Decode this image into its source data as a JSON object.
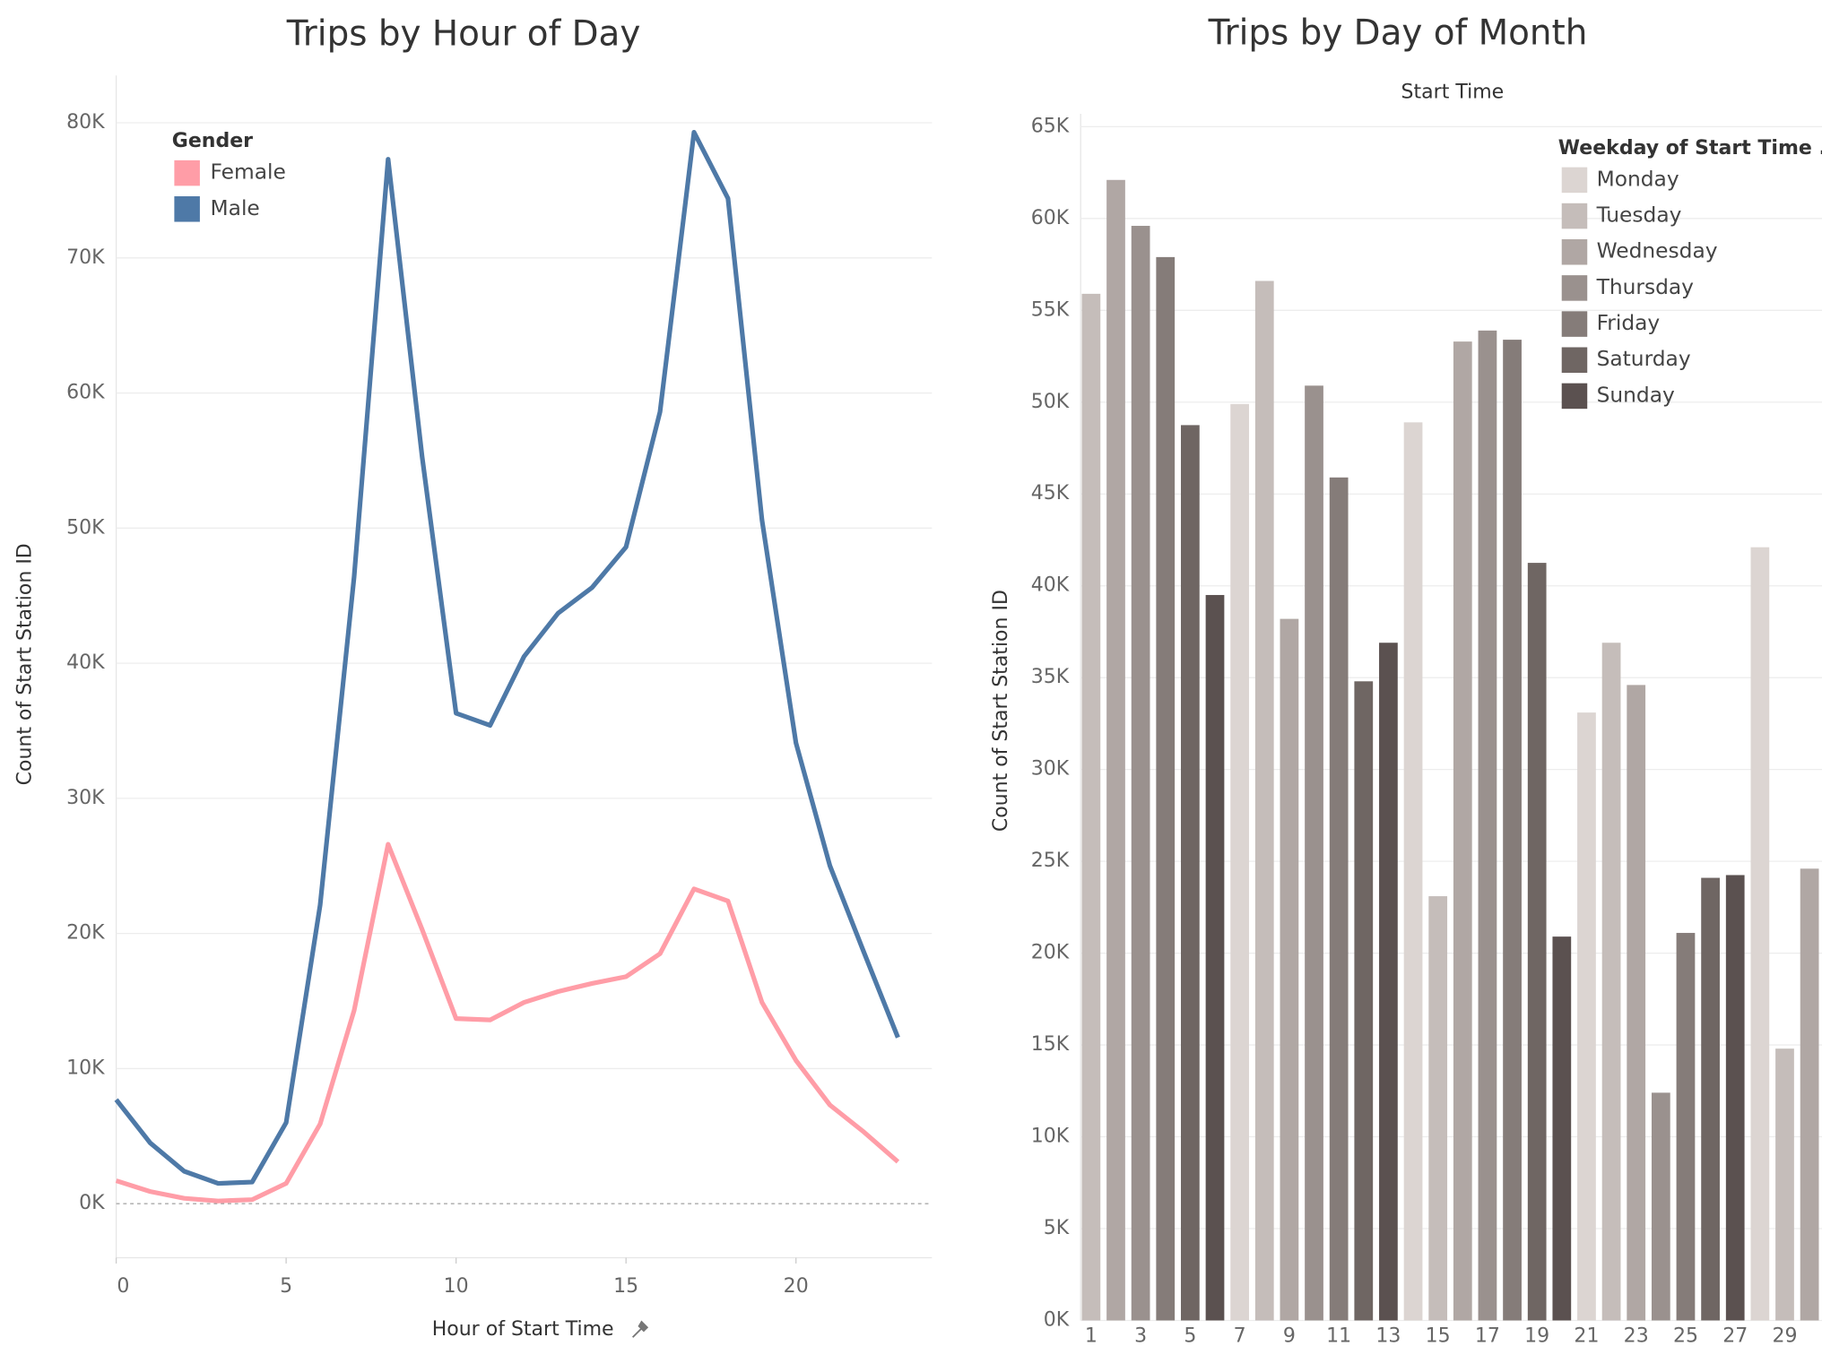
{
  "chart_data": [
    {
      "type": "line",
      "title": "Trips by Hour of Day",
      "x_label": "Hour of Start Time",
      "y_label": "Count of Start Station ID",
      "x": [
        0,
        1,
        2,
        3,
        4,
        5,
        6,
        7,
        8,
        9,
        10,
        11,
        12,
        13,
        14,
        15,
        16,
        17,
        18,
        19,
        20,
        21,
        22,
        23
      ],
      "series": [
        {
          "name": "Female",
          "color": "#ff9da7",
          "values": [
            1700,
            900,
            400,
            200,
            300,
            1500,
            5900,
            14300,
            26600,
            20300,
            13700,
            13600,
            14900,
            15700,
            16300,
            16800,
            18500,
            23300,
            22400,
            14900,
            10600,
            7300,
            5300,
            3100
          ]
        },
        {
          "name": "Male",
          "color": "#4e79a7",
          "values": [
            7700,
            4500,
            2400,
            1500,
            1600,
            6000,
            22100,
            46400,
            77300,
            55300,
            36300,
            35400,
            40500,
            43700,
            45600,
            48600,
            58600,
            79300,
            74400,
            50600,
            34100,
            25000,
            18600,
            12300
          ]
        }
      ],
      "legend_title": "Gender",
      "xlim": [
        0,
        24
      ],
      "xticks": [
        0,
        5,
        10,
        15,
        20
      ],
      "ylim": [
        -4000,
        83500
      ],
      "yticks": [
        {
          "value": 0,
          "label": "0K"
        },
        {
          "value": 10000,
          "label": "10K"
        },
        {
          "value": 20000,
          "label": "20K"
        },
        {
          "value": 30000,
          "label": "30K"
        },
        {
          "value": 40000,
          "label": "40K"
        },
        {
          "value": 50000,
          "label": "50K"
        },
        {
          "value": 60000,
          "label": "60K"
        },
        {
          "value": 70000,
          "label": "70K"
        },
        {
          "value": 80000,
          "label": "80K"
        }
      ],
      "grid": true
    },
    {
      "type": "bar",
      "title": "Trips by Day of Month",
      "subtitle": "Start Time",
      "y_label": "Count of Start Station ID",
      "categories": [
        1,
        null,
        3,
        null,
        5,
        null,
        7,
        null,
        9,
        null,
        11,
        null,
        13,
        null,
        15,
        null,
        17,
        null,
        19,
        null,
        21,
        null,
        23,
        null,
        25,
        null,
        27,
        null,
        29,
        null
      ],
      "values": [
        55900,
        62100,
        59600,
        57900,
        48750,
        39500,
        49900,
        56600,
        38200,
        50900,
        45900,
        34800,
        36900,
        48900,
        23100,
        53300,
        53900,
        53400,
        41250,
        20900,
        33100,
        36900,
        34600,
        12400,
        21100,
        24100,
        24250,
        42100,
        14800,
        24600
      ],
      "colors": [
        "#c5bdba",
        "#b0a7a4",
        "#9a918e",
        "#857c79",
        "#6f6663",
        "#5b5150",
        "#dcd5d2",
        "#c5bdba",
        "#b0a7a4",
        "#9a918e",
        "#857c79",
        "#6f6663",
        "#5b5150",
        "#dcd5d2",
        "#c5bdba",
        "#b0a7a4",
        "#9a918e",
        "#857c79",
        "#6f6663",
        "#5b5150",
        "#dcd5d2",
        "#c5bdba",
        "#b0a7a4",
        "#9a918e",
        "#857c79",
        "#6f6663",
        "#5b5150",
        "#dcd5d2",
        "#c5bdba",
        "#b0a7a4"
      ],
      "legend_title": "Weekday of Start Time ..",
      "legend": [
        {
          "name": "Monday",
          "color": "#dcd5d2"
        },
        {
          "name": "Tuesday",
          "color": "#c5bdba"
        },
        {
          "name": "Wednesday",
          "color": "#b0a7a4"
        },
        {
          "name": "Thursday",
          "color": "#9a918e"
        },
        {
          "name": "Friday",
          "color": "#857c79"
        },
        {
          "name": "Saturday",
          "color": "#6f6663"
        },
        {
          "name": "Sunday",
          "color": "#5b5150"
        }
      ],
      "ylim": [
        0,
        65700
      ],
      "yticks": [
        {
          "value": 0,
          "label": "0K"
        },
        {
          "value": 5000,
          "label": "5K"
        },
        {
          "value": 10000,
          "label": "10K"
        },
        {
          "value": 15000,
          "label": "15K"
        },
        {
          "value": 20000,
          "label": "20K"
        },
        {
          "value": 25000,
          "label": "25K"
        },
        {
          "value": 30000,
          "label": "30K"
        },
        {
          "value": 35000,
          "label": "35K"
        },
        {
          "value": 40000,
          "label": "40K"
        },
        {
          "value": 45000,
          "label": "45K"
        },
        {
          "value": 50000,
          "label": "50K"
        },
        {
          "value": 55000,
          "label": "55K"
        },
        {
          "value": 60000,
          "label": "60K"
        },
        {
          "value": 65000,
          "label": "65K"
        }
      ],
      "grid": true
    }
  ]
}
